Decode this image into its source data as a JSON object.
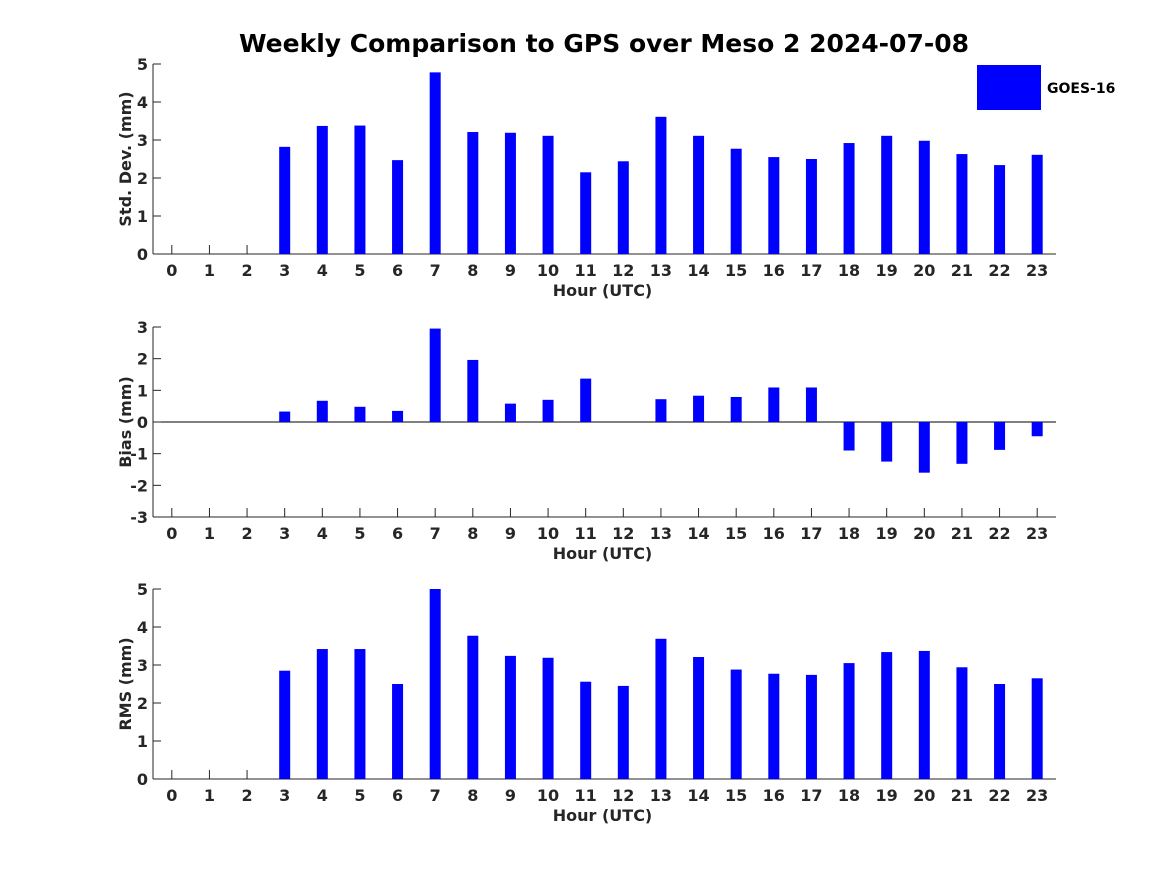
{
  "title": "Weekly Comparison to GPS over Meso 2 2024-07-08",
  "legend": {
    "label": "GOES-16",
    "color": "#0000ff"
  },
  "chart_data": [
    {
      "type": "bar",
      "name": "std-dev",
      "ylabel": "Std. Dev. (mm)",
      "xlabel": "Hour (UTC)",
      "categories": [
        "0",
        "1",
        "2",
        "3",
        "4",
        "5",
        "6",
        "7",
        "8",
        "9",
        "10",
        "11",
        "12",
        "13",
        "14",
        "15",
        "16",
        "17",
        "18",
        "19",
        "20",
        "21",
        "22",
        "23"
      ],
      "values": [
        0,
        0,
        0,
        2.82,
        3.37,
        3.38,
        2.47,
        4.78,
        3.21,
        3.19,
        3.11,
        2.15,
        2.44,
        3.61,
        3.11,
        2.77,
        2.55,
        2.5,
        2.92,
        3.11,
        2.98,
        2.63,
        2.34,
        2.61
      ],
      "ylim": [
        0,
        5
      ],
      "yticks": [
        0,
        1,
        2,
        3,
        4,
        5
      ],
      "series_name": "GOES-16",
      "color": "#0000ff"
    },
    {
      "type": "bar",
      "name": "bias",
      "ylabel": "Bias (mm)",
      "xlabel": "Hour (UTC)",
      "categories": [
        "0",
        "1",
        "2",
        "3",
        "4",
        "5",
        "6",
        "7",
        "8",
        "9",
        "10",
        "11",
        "12",
        "13",
        "14",
        "15",
        "16",
        "17",
        "18",
        "19",
        "20",
        "21",
        "22",
        "23"
      ],
      "values": [
        0,
        0,
        0,
        0.33,
        0.67,
        0.48,
        0.35,
        2.95,
        1.96,
        0.58,
        0.7,
        1.37,
        0,
        0.72,
        0.83,
        0.79,
        1.09,
        1.09,
        -0.9,
        -1.25,
        -1.6,
        -1.32,
        -0.88,
        -0.45
      ],
      "ylim": [
        -3,
        3
      ],
      "yticks": [
        -3,
        -2,
        -1,
        0,
        1,
        2,
        3
      ],
      "series_name": "GOES-16",
      "color": "#0000ff"
    },
    {
      "type": "bar",
      "name": "rms",
      "ylabel": "RMS (mm)",
      "xlabel": "Hour (UTC)",
      "categories": [
        "0",
        "1",
        "2",
        "3",
        "4",
        "5",
        "6",
        "7",
        "8",
        "9",
        "10",
        "11",
        "12",
        "13",
        "14",
        "15",
        "16",
        "17",
        "18",
        "19",
        "20",
        "21",
        "22",
        "23"
      ],
      "values": [
        0,
        0,
        0,
        2.85,
        3.42,
        3.42,
        2.5,
        5.0,
        3.77,
        3.24,
        3.19,
        2.56,
        2.45,
        3.69,
        3.21,
        2.88,
        2.77,
        2.74,
        3.05,
        3.34,
        3.37,
        2.94,
        2.5,
        2.65
      ],
      "ylim": [
        0,
        5
      ],
      "yticks": [
        0,
        1,
        2,
        3,
        4,
        5
      ],
      "series_name": "GOES-16",
      "color": "#0000ff"
    }
  ]
}
